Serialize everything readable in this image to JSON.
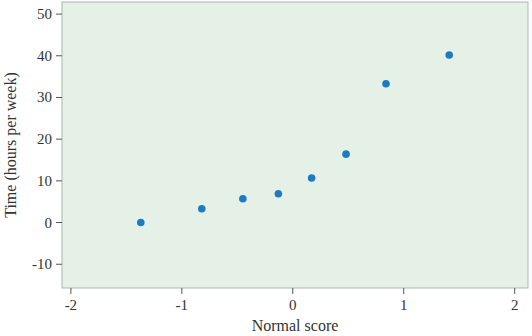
{
  "chart_data": {
    "type": "scatter",
    "x_label": "Normal score",
    "y_label": "Time (hours per week)",
    "x": [
      -1.37,
      -0.82,
      -0.45,
      -0.13,
      0.17,
      0.48,
      0.84,
      1.41
    ],
    "values": [
      0,
      3.3,
      5.7,
      6.9,
      10.7,
      16.4,
      33.3,
      40.2
    ],
    "color": "#1f7bc1",
    "marker": "circle",
    "xlim": [
      -2.08,
      2.12
    ],
    "xticks": [
      -2,
      -1,
      0,
      1,
      2
    ],
    "ylim": [
      -15.7,
      52.9
    ],
    "yticks": [
      -10,
      0,
      10,
      20,
      30,
      40,
      50
    ]
  }
}
